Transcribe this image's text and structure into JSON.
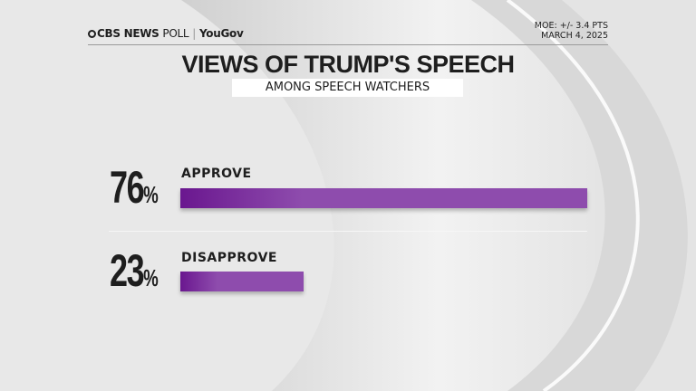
{
  "header": {
    "brand": "CBS NEWS",
    "brand_poll": "POLL",
    "partner": "YouGov",
    "moe": "MOE: +/- 3.4 PTS",
    "date": "MARCH 4, 2025"
  },
  "chart_data": {
    "type": "bar",
    "orientation": "horizontal",
    "title": "VIEWS OF TRUMP'S SPEECH",
    "subtitle": "AMONG SPEECH WATCHERS",
    "categories": [
      "APPROVE",
      "DISAPPROVE"
    ],
    "values": [
      76,
      23
    ],
    "value_labels": [
      "76",
      "23"
    ],
    "unit": "%",
    "xlim": [
      0,
      100
    ],
    "bar_color": "#8e4cad",
    "bar_color_dark": "#6a178f"
  }
}
